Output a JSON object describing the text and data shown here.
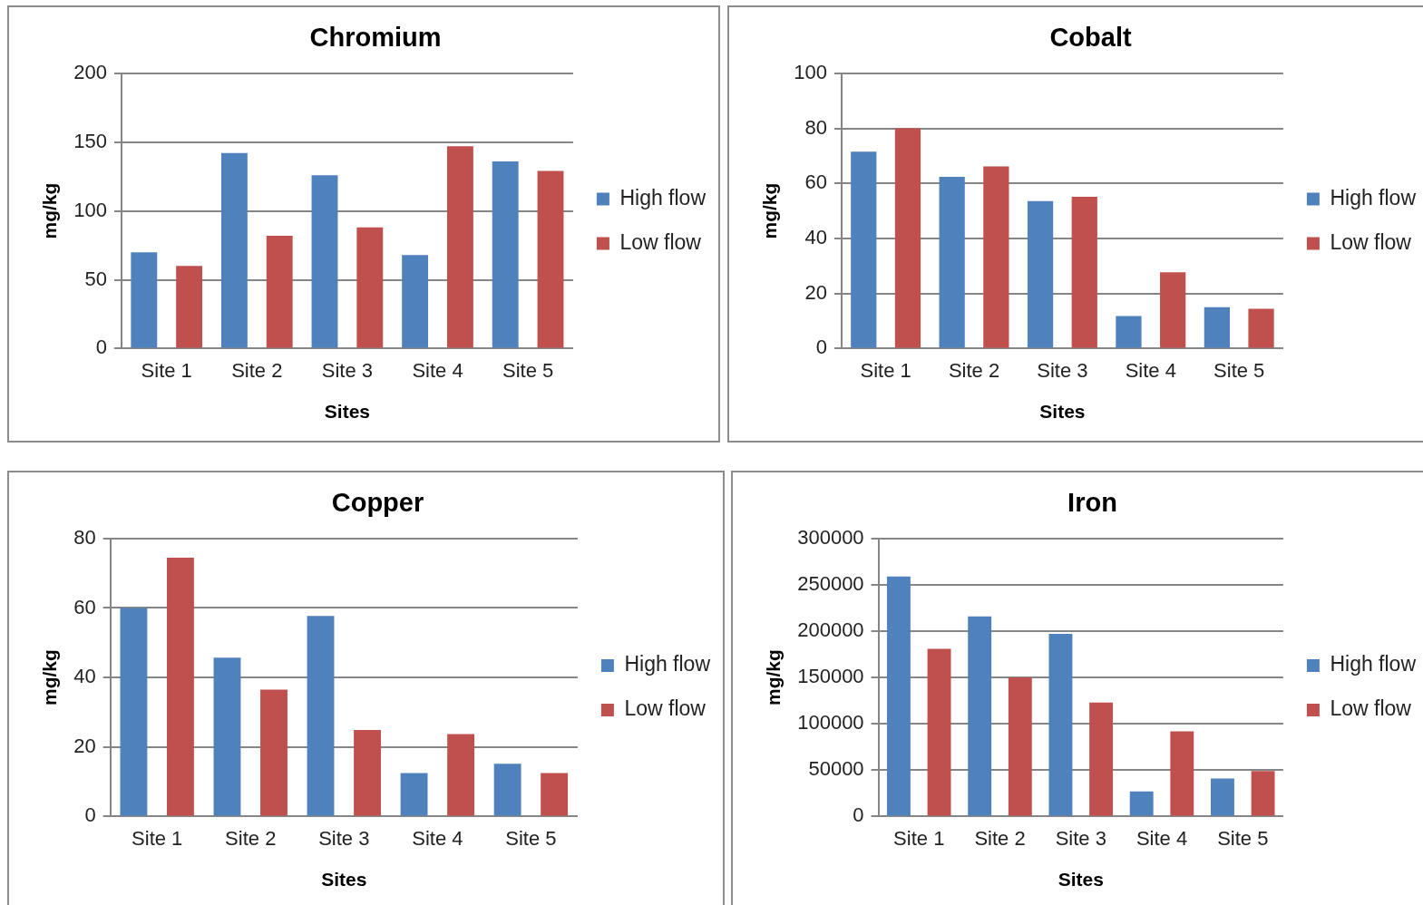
{
  "chart_data": [
    {
      "type": "bar",
      "title": "Chromium",
      "xlabel": "Sites",
      "ylabel": "mg/kg",
      "categories": [
        "Site 1",
        "Site 2",
        "Site 3",
        "Site 4",
        "Site 5"
      ],
      "series": [
        {
          "name": "High flow",
          "color": "#4f81bd",
          "values": [
            70,
            142,
            126,
            68,
            136
          ]
        },
        {
          "name": "Low flow",
          "color": "#c0504d",
          "values": [
            60,
            82,
            88,
            147,
            129
          ]
        }
      ],
      "ylim": [
        0,
        200
      ],
      "yticks": [
        0,
        50,
        100,
        150,
        200
      ],
      "grid": "y",
      "legend": "right"
    },
    {
      "type": "bar",
      "title": "Cobalt",
      "xlabel": "Sites",
      "ylabel": "mg/kg",
      "categories": [
        "Site 1",
        "Site 2",
        "Site 3",
        "Site 4",
        "Site 5"
      ],
      "series": [
        {
          "name": "High flow",
          "color": "#4f81bd",
          "values": [
            71.5,
            62.4,
            53.6,
            11.8,
            15
          ]
        },
        {
          "name": "Low flow",
          "color": "#c0504d",
          "values": [
            80,
            66.2,
            55.1,
            27.7,
            14.5
          ]
        }
      ],
      "ylim": [
        0,
        100
      ],
      "yticks": [
        0,
        20,
        40,
        60,
        80,
        100
      ],
      "grid": "y",
      "legend": "right"
    },
    {
      "type": "bar",
      "title": "Copper",
      "xlabel": "Sites",
      "ylabel": "mg/kg",
      "categories": [
        "Site 1",
        "Site 2",
        "Site 3",
        "Site 4",
        "Site 5"
      ],
      "series": [
        {
          "name": "High flow",
          "color": "#4f81bd",
          "values": [
            60,
            45.7,
            57.7,
            12.5,
            15.2
          ]
        },
        {
          "name": "Low flow",
          "color": "#c0504d",
          "values": [
            74.5,
            36.5,
            24.9,
            23.7,
            12.5
          ]
        }
      ],
      "ylim": [
        0,
        80
      ],
      "yticks": [
        0,
        20,
        40,
        60,
        80
      ],
      "grid": "y",
      "legend": "right"
    },
    {
      "type": "bar",
      "title": "Iron",
      "xlabel": "Sites",
      "ylabel": "mg/kg",
      "categories": [
        "Site 1",
        "Site 2",
        "Site 3",
        "Site 4",
        "Site 5"
      ],
      "series": [
        {
          "name": "High flow",
          "color": "#4f81bd",
          "values": [
            259000,
            216000,
            197000,
            27000,
            41000
          ]
        },
        {
          "name": "Low flow",
          "color": "#c0504d",
          "values": [
            181000,
            150000,
            123000,
            92000,
            49000
          ]
        }
      ],
      "ylim": [
        0,
        300000
      ],
      "yticks": [
        0,
        50000,
        100000,
        150000,
        200000,
        250000,
        300000
      ],
      "grid": "y",
      "legend": "right"
    }
  ]
}
